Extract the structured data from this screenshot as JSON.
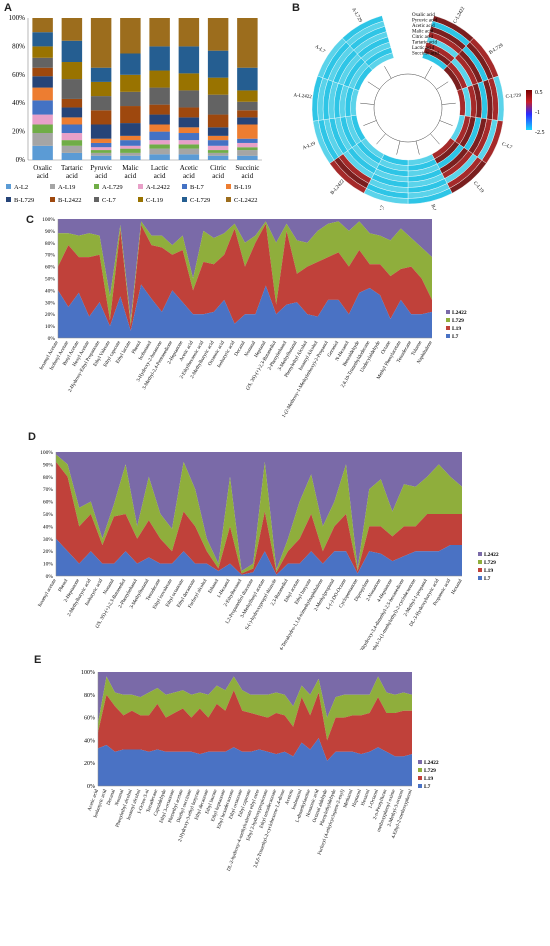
{
  "panels": {
    "a": "A",
    "b": "B",
    "c": "C",
    "d": "D",
    "e": "E"
  },
  "panel_a": {
    "chart_data": {
      "type": "bar",
      "stacked": true,
      "categories": [
        "Oxalic acid",
        "Tartaric acid",
        "Pyruvic acid",
        "Malic acid",
        "Lactic acid",
        "Acetic acid",
        "Citric acid",
        "Succinic acid"
      ],
      "category_lines": [
        [
          "Oxalic",
          "acid"
        ],
        [
          "Tartaric",
          "acid"
        ],
        [
          "Pyruvic",
          "acid"
        ],
        [
          "Malic",
          "acid"
        ],
        [
          "Lactic",
          "acid"
        ],
        [
          "Acetic",
          "acid"
        ],
        [
          "Citric",
          "acid"
        ],
        [
          "Succinic",
          "acid"
        ]
      ],
      "yticks": [
        "0%",
        "20%",
        "40%",
        "60%",
        "80%",
        "100%"
      ],
      "ylim": [
        0,
        100
      ],
      "series": [
        {
          "name": "A-L2",
          "color": "#5b9bd5",
          "values": [
            10,
            5,
            3,
            3,
            4,
            4,
            3,
            3
          ]
        },
        {
          "name": "A-L19",
          "color": "#a5a5a5",
          "values": [
            9,
            5,
            2,
            2,
            4,
            4,
            2,
            4
          ]
        },
        {
          "name": "A-L729",
          "color": "#70ad47",
          "values": [
            6,
            4,
            2,
            3,
            3,
            3,
            2,
            2
          ]
        },
        {
          "name": "A-L2422",
          "color": "#e8a0c8",
          "values": [
            7,
            5,
            2,
            2,
            3,
            3,
            3,
            3
          ]
        },
        {
          "name": "B-L7",
          "color": "#4472c4",
          "values": [
            10,
            6,
            3,
            4,
            6,
            5,
            4,
            3
          ]
        },
        {
          "name": "B-L19",
          "color": "#ed7d31",
          "values": [
            9,
            5,
            3,
            3,
            5,
            4,
            3,
            10
          ]
        },
        {
          "name": "B-L729",
          "color": "#264478",
          "values": [
            8,
            7,
            10,
            9,
            7,
            7,
            6,
            5
          ]
        },
        {
          "name": "B-L2422",
          "color": "#9e480e",
          "values": [
            6,
            6,
            10,
            12,
            7,
            7,
            9,
            5
          ]
        },
        {
          "name": "C-L7",
          "color": "#636363",
          "values": [
            7,
            14,
            10,
            10,
            12,
            12,
            14,
            6
          ]
        },
        {
          "name": "C-L19",
          "color": "#997300",
          "values": [
            8,
            12,
            10,
            12,
            12,
            12,
            12,
            8
          ]
        },
        {
          "name": "C-L729",
          "color": "#255e91",
          "values": [
            10,
            15,
            10,
            15,
            17,
            19,
            19,
            16
          ]
        },
        {
          "name": "C-L2422",
          "color": "#9c6d1d",
          "values": [
            10,
            16,
            35,
            25,
            20,
            20,
            23,
            35
          ]
        }
      ],
      "legend": [
        "A-L2",
        "A-L19",
        "A-L729",
        "A-L2422",
        "B-L7",
        "B-L19",
        "B-L729",
        "B-L2422",
        "C-L7",
        "C-L19",
        "C-L729",
        "C-L2422"
      ]
    }
  },
  "panel_b": {
    "chart_data": {
      "type": "heatmap",
      "ring_labels": [
        "Oxalic acid",
        "Pyruvic acid",
        "Acetic acid",
        "Malic acid",
        "Citric acid",
        "Tartaric acid",
        "Lactic acid",
        "Succinic acid"
      ],
      "samples": [
        "C-L2422",
        "B-L729",
        "C-L729",
        "C-L7",
        "C-L19",
        "B-L19",
        "B-L7",
        "B-L2422",
        "A-L19",
        "A-L2422",
        "A-L7",
        "A-L729"
      ],
      "color_scale": {
        "min": -2.5,
        "mid": -1,
        "max": 0.5,
        "labels": [
          "0.5",
          "-1",
          "-2.5"
        ]
      }
    }
  },
  "panel_c": {
    "chart_data": {
      "type": "area",
      "stacked_percent": true,
      "yticks": [
        "0%",
        "10%",
        "20%",
        "30%",
        "40%",
        "50%",
        "60%",
        "70%",
        "80%",
        "90%",
        "100%"
      ],
      "categories": [
        "Isoamyl Acetate",
        "Isobutyl Acetate",
        "Butyl Acetate",
        "Hexyl Acetate",
        "2-Hydroxy-Ethyl Propanoate",
        "Ethyl Valerate",
        "Ethyl caproate",
        "Ethyl lactate",
        "Phenol",
        "Isobutanol",
        "3-Hydroxy-2-butanone",
        "3-Methyl-2,4-Pentanedione",
        "2-Heptanone",
        "Acetic acid",
        "2-Ethylhexanoic acid",
        "2-Methylbutyric acid",
        "Octanoic acid",
        "Isobutyric acid",
        "Decanal",
        "Nonanal",
        "Heptanal",
        "(2S, 3S)-(+)-2,3-Butanediol",
        "2-Phenylethanol",
        "3-Methylbutanal",
        "Phenylethyl Alcohol",
        "Isoamyl Alcohol",
        "1-(2-Methoxy-1-Methylethoxy)-2-Propanol",
        "Geraniol",
        "N-Hexanol",
        "Benzaldehyde",
        "2,6,10-Trimethyldodecane",
        "Undecylaldehyde",
        "Octane",
        "Methyl Phenylacetate",
        "Tetradecane",
        "Toluene",
        "Naphthalene"
      ],
      "series": [
        {
          "name": "L2422",
          "color": "#7a6aa8",
          "values": [
            12,
            12,
            14,
            12,
            14,
            65,
            5,
            85,
            2,
            14,
            14,
            22,
            14,
            50,
            10,
            16,
            12,
            4,
            20,
            14,
            2,
            20,
            4,
            18,
            20,
            10,
            4,
            2,
            10,
            2,
            12,
            14,
            18,
            8,
            16,
            24,
            32
          ]
        },
        {
          "name": "L729",
          "color": "#8fae3c",
          "values": [
            28,
            10,
            18,
            20,
            16,
            20,
            4,
            5,
            3,
            8,
            10,
            8,
            12,
            10,
            26,
            22,
            18,
            4,
            20,
            6,
            2,
            52,
            6,
            28,
            20,
            26,
            28,
            26,
            30,
            24,
            26,
            24,
            30,
            34,
            24,
            26,
            36
          ]
        },
        {
          "name": "L19",
          "color": "#c0413a",
          "values": [
            20,
            52,
            30,
            50,
            40,
            5,
            56,
            4,
            50,
            45,
            54,
            30,
            44,
            20,
            44,
            40,
            38,
            80,
            40,
            60,
            52,
            8,
            62,
            24,
            40,
            46,
            36,
            40,
            40,
            36,
            20,
            26,
            36,
            26,
            40,
            30,
            10
          ]
        },
        {
          "name": "L7",
          "color": "#4a72c4",
          "values": [
            40,
            26,
            38,
            18,
            30,
            10,
            35,
            6,
            45,
            33,
            22,
            40,
            30,
            20,
            20,
            22,
            32,
            12,
            20,
            20,
            44,
            20,
            28,
            30,
            20,
            18,
            32,
            32,
            20,
            38,
            42,
            36,
            16,
            32,
            20,
            20,
            22
          ]
        }
      ],
      "legend": [
        "L2422",
        "L729",
        "L19",
        "L7"
      ]
    }
  },
  "panel_d": {
    "chart_data": {
      "type": "area",
      "stacked_percent": true,
      "yticks": [
        "0%",
        "10%",
        "20%",
        "30%",
        "40%",
        "50%",
        "60%",
        "70%",
        "80%",
        "90%",
        "100%"
      ],
      "categories": [
        "Isoamyl acetate",
        "Phenol",
        "2-Heptanone",
        "2-Methylbutyric acid",
        "Isobutyric acid",
        "Nonanal",
        "(2S, 3S)-(+)-2,3-Butanediol",
        "2-Phenylethanol",
        "3-Methylbutanal",
        "Tetradecane",
        "Ethyl isovalerate",
        "Ethyl octanoate",
        "Ethyl decanoate",
        "Furfuryl alcohol",
        "Ethanol",
        "1-Hexanol",
        "2-Ethylhexanol",
        "1,2-Propanediol diacetate",
        "3-Methylbutyl acetate",
        "S-(-)-hydroxypropyl thiazole",
        "2,3-Butanediol",
        "Ethyl acetate",
        "Ethyl butyrate",
        "1,2,3,4-Tetrahydro-1,1,6-trimethylnaphthalene",
        "2-Methylpropanal",
        "L-(-)-DO-Octane",
        "Cyclopentanone",
        "Dipropylene",
        "2-Nonanone",
        "4-Heptanone",
        "3,4-Dihydroxy-3,4-dimethyl-2,5-hexanedione",
        "2-Methyl-3-(1-methylethyl)-2-cyclohexenone",
        "2-Methyl-1-propanol",
        "DL-3-Hydroxybutyric acid",
        "Propanoic acid",
        "Hexanal"
      ],
      "series": [
        {
          "name": "L2422",
          "color": "#7a6aa8",
          "values": [
            2,
            10,
            45,
            40,
            70,
            42,
            10,
            60,
            20,
            50,
            62,
            8,
            30,
            70,
            90,
            20,
            96,
            90,
            8,
            95,
            70,
            40,
            18,
            60,
            40,
            10,
            94,
            30,
            22,
            48,
            26,
            28,
            20,
            10,
            20,
            28
          ]
        },
        {
          "name": "L729",
          "color": "#8fae3c",
          "values": [
            6,
            10,
            15,
            10,
            5,
            10,
            40,
            10,
            35,
            20,
            18,
            40,
            30,
            10,
            4,
            40,
            2,
            4,
            40,
            2,
            10,
            30,
            32,
            20,
            20,
            40,
            2,
            30,
            38,
            20,
            34,
            32,
            30,
            40,
            30,
            22
          ]
        },
        {
          "name": "L19",
          "color": "#c0413a",
          "values": [
            62,
            60,
            30,
            30,
            15,
            38,
            30,
            20,
            30,
            20,
            10,
            32,
            30,
            10,
            2,
            30,
            1,
            3,
            32,
            2,
            10,
            20,
            30,
            10,
            20,
            30,
            2,
            20,
            22,
            20,
            24,
            20,
            30,
            30,
            25,
            25
          ]
        },
        {
          "name": "L7",
          "color": "#4a72c4",
          "values": [
            30,
            20,
            10,
            20,
            10,
            10,
            20,
            10,
            15,
            10,
            10,
            20,
            10,
            10,
            4,
            10,
            1,
            3,
            20,
            1,
            10,
            10,
            20,
            10,
            20,
            20,
            2,
            20,
            18,
            12,
            16,
            20,
            20,
            20,
            25,
            25
          ]
        }
      ],
      "legend": [
        "L2422",
        "L729",
        "L19",
        "L7"
      ]
    }
  },
  "panel_e": {
    "chart_data": {
      "type": "area",
      "stacked_percent": true,
      "yticks": [
        "0%",
        "20%",
        "40%",
        "60%",
        "80%",
        "100%"
      ],
      "categories": [
        "Acetic acid",
        "Isobutyric acid",
        "Decanal",
        "Nonanal",
        "Phenylethyl alcohol",
        "Isoamyl alcohol",
        "1-Octen-3-ol",
        "Tetradecane",
        "Capraldehyde",
        "Ethyl 3-octanoate",
        "Phenethyl acetate",
        "Diethyl succinate",
        "2-Hydroxy-3-ethyl butyrate",
        "Ethyl decanoate",
        "Ethyl laurate",
        "Ethyl heptanoate",
        "Ethyl hexadecanoate",
        "Ethyl octanoate",
        "Ethyl caproate",
        "DL-2-hydroxy-4-methylvalerate ethyl ester",
        "Ethyl 2-hydroxypropionate",
        "Ethyl tetradecanoate",
        "2,6,6-Trimethyl-2-cyclohexene-1,4-dione",
        "Acetoin",
        "Isobutanol",
        "L-dimethylamine",
        "Nonanoic acid",
        "Octanal aldehyde",
        "Phenylethyldehyde",
        "Furfuryl (4-ethylcyclopent-2-enyl)",
        "Methanol",
        "Heptanol",
        "Hexanol",
        "1-Octanol",
        "2-n-Pentylfuran",
        "methoxyphenyl oxime",
        "2-Methyl-3-octanol",
        "4-Ethyl-2-methoxyphenol"
      ],
      "series": [
        {
          "name": "L2422",
          "color": "#7a6aa8",
          "values": [
            45,
            4,
            18,
            20,
            20,
            22,
            18,
            14,
            20,
            18,
            16,
            20,
            18,
            20,
            12,
            16,
            4,
            16,
            20,
            20,
            20,
            18,
            20,
            30,
            12,
            20,
            6,
            40,
            22,
            20,
            20,
            20,
            20,
            4,
            18,
            20,
            18,
            20
          ]
        },
        {
          "name": "L729",
          "color": "#8fae3c",
          "values": [
            8,
            16,
            12,
            18,
            14,
            16,
            20,
            14,
            20,
            18,
            16,
            20,
            14,
            20,
            16,
            18,
            12,
            18,
            16,
            18,
            20,
            18,
            18,
            18,
            10,
            18,
            12,
            20,
            18,
            20,
            18,
            18,
            16,
            18,
            18,
            16,
            16,
            14
          ]
        },
        {
          "name": "L19",
          "color": "#c0413a",
          "values": [
            14,
            44,
            40,
            30,
            34,
            30,
            32,
            40,
            30,
            34,
            38,
            30,
            40,
            30,
            42,
            36,
            50,
            36,
            34,
            30,
            30,
            36,
            32,
            26,
            40,
            30,
            40,
            18,
            30,
            30,
            32,
            34,
            34,
            44,
            34,
            38,
            40,
            38
          ]
        },
        {
          "name": "L7",
          "color": "#4a72c4",
          "values": [
            33,
            36,
            30,
            32,
            32,
            32,
            30,
            32,
            30,
            30,
            30,
            30,
            28,
            30,
            30,
            30,
            34,
            30,
            30,
            32,
            30,
            28,
            30,
            26,
            38,
            32,
            42,
            22,
            30,
            30,
            30,
            28,
            30,
            34,
            30,
            26,
            26,
            28
          ]
        }
      ],
      "legend": [
        "L2422",
        "L729",
        "L19",
        "L7"
      ]
    }
  }
}
